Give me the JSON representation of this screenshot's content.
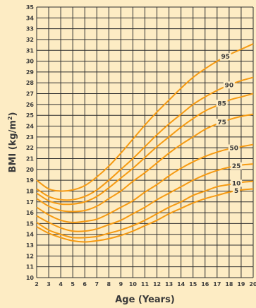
{
  "chart_data": {
    "type": "line",
    "title": "",
    "xlabel": "Age (Years)",
    "ylabel_main": "BMI (kg/m",
    "ylabel_sup": "2",
    "ylabel_close": ")",
    "xlim": [
      2,
      20
    ],
    "ylim": [
      10,
      35
    ],
    "x_ticks": [
      "2",
      "3",
      "4",
      "5",
      "6",
      "7",
      "8",
      "9",
      "10",
      "11",
      "12",
      "13",
      "14",
      "15",
      "16",
      "17",
      "18",
      "19",
      "20"
    ],
    "y_ticks": [
      "10",
      "11",
      "12",
      "13",
      "14",
      "15",
      "16",
      "17",
      "18",
      "19",
      "20",
      "21",
      "22",
      "23",
      "24",
      "25",
      "26",
      "27",
      "28",
      "29",
      "30",
      "31",
      "32",
      "33",
      "34",
      "35"
    ],
    "grid": true,
    "x": [
      2,
      3,
      4,
      5,
      6,
      7,
      8,
      9,
      10,
      11,
      12,
      13,
      14,
      15,
      16,
      17,
      18,
      19,
      20
    ],
    "series": [
      {
        "name": "5",
        "values": [
          14.7,
          14.1,
          13.7,
          13.4,
          13.3,
          13.4,
          13.6,
          13.9,
          14.3,
          14.8,
          15.3,
          15.9,
          16.4,
          16.9,
          17.3,
          17.6,
          17.9,
          18.1,
          18.2
        ]
      },
      {
        "name": "10",
        "values": [
          15.1,
          14.4,
          14.0,
          13.7,
          13.7,
          13.8,
          14.1,
          14.4,
          14.8,
          15.3,
          15.9,
          16.5,
          17.0,
          17.6,
          18.0,
          18.4,
          18.6,
          18.8,
          18.9
        ]
      },
      {
        "name": "25",
        "values": [
          15.7,
          15.1,
          14.6,
          14.3,
          14.3,
          14.5,
          14.9,
          15.3,
          15.9,
          16.5,
          17.2,
          17.8,
          18.4,
          19.0,
          19.5,
          19.9,
          20.2,
          20.4,
          20.5
        ]
      },
      {
        "name": "50",
        "values": [
          16.5,
          15.8,
          15.3,
          15.1,
          15.2,
          15.4,
          15.9,
          16.5,
          17.1,
          17.9,
          18.6,
          19.4,
          20.1,
          20.7,
          21.2,
          21.6,
          21.9,
          22.1,
          22.3
        ]
      },
      {
        "name": "75",
        "values": [
          17.3,
          16.6,
          16.2,
          16.1,
          16.2,
          16.6,
          17.3,
          18.0,
          18.9,
          19.7,
          20.6,
          21.5,
          22.3,
          23.0,
          23.7,
          24.2,
          24.6,
          24.9,
          25.1
        ]
      },
      {
        "name": "85",
        "values": [
          17.8,
          17.1,
          16.8,
          16.8,
          17.0,
          17.5,
          18.3,
          19.2,
          20.1,
          21.1,
          22.1,
          23.0,
          23.9,
          24.7,
          25.4,
          25.9,
          26.4,
          26.7,
          27.0
        ]
      },
      {
        "name": "90",
        "values": [
          18.2,
          17.5,
          17.2,
          17.2,
          17.5,
          18.1,
          19.0,
          20.0,
          21.0,
          22.1,
          23.2,
          24.2,
          25.1,
          26.0,
          26.7,
          27.3,
          27.8,
          28.2,
          28.5
        ]
      },
      {
        "name": "95",
        "values": [
          19.0,
          18.2,
          18.0,
          18.1,
          18.5,
          19.3,
          20.3,
          21.5,
          22.8,
          24.1,
          25.3,
          26.4,
          27.5,
          28.5,
          29.3,
          30.0,
          30.6,
          31.1,
          31.6
        ]
      }
    ],
    "line_color": "#f59a12",
    "grid_color": "#2f2f2f",
    "plot_background": "#fdecc4"
  }
}
